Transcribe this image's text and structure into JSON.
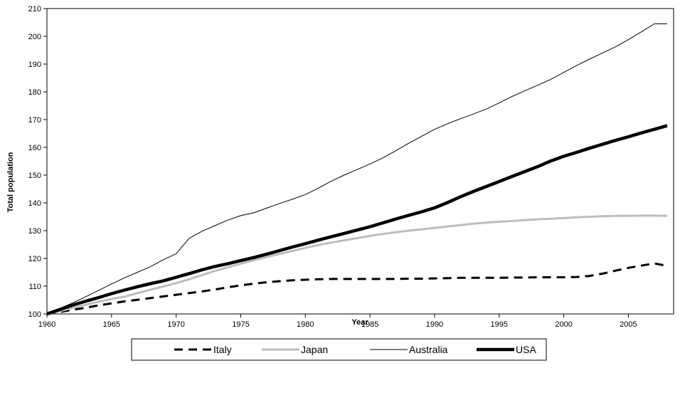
{
  "chart_data": {
    "type": "line",
    "title": "",
    "xlabel": "Year",
    "ylabel": "Total population",
    "xlim": [
      1960,
      2008.5
    ],
    "ylim": [
      100,
      210
    ],
    "x_ticks": [
      1960,
      1965,
      1970,
      1975,
      1980,
      1985,
      1990,
      1995,
      2000,
      2005
    ],
    "y_ticks": [
      100,
      110,
      120,
      130,
      140,
      150,
      160,
      170,
      180,
      190,
      200,
      210
    ],
    "grid": false,
    "legend_position": "bottom",
    "x": [
      1960,
      1961,
      1962,
      1963,
      1964,
      1965,
      1966,
      1967,
      1968,
      1969,
      1970,
      1971,
      1972,
      1973,
      1974,
      1975,
      1976,
      1977,
      1978,
      1979,
      1980,
      1981,
      1982,
      1983,
      1984,
      1985,
      1986,
      1987,
      1988,
      1989,
      1990,
      1991,
      1992,
      1993,
      1994,
      1995,
      1996,
      1997,
      1998,
      1999,
      2000,
      2001,
      2002,
      2003,
      2004,
      2005,
      2006,
      2007,
      2008
    ],
    "series": [
      {
        "name": "Italy",
        "color": "#000000",
        "style": "dashed-thick",
        "values": [
          100,
          100.7,
          101.5,
          102.2,
          103.1,
          103.8,
          104.5,
          105.1,
          105.7,
          106.3,
          106.9,
          107.5,
          108.1,
          108.8,
          109.6,
          110.3,
          110.9,
          111.4,
          111.8,
          112.1,
          112.3,
          112.5,
          112.6,
          112.6,
          112.6,
          112.6,
          112.6,
          112.6,
          112.7,
          112.7,
          112.8,
          112.9,
          113.0,
          113.0,
          113.0,
          113.0,
          113.1,
          113.1,
          113.2,
          113.2,
          113.2,
          113.3,
          113.7,
          114.5,
          115.6,
          116.6,
          117.4,
          118.2,
          117.3
        ]
      },
      {
        "name": "Japan",
        "color": "#bdbdbd",
        "style": "solid-thick",
        "values": [
          100,
          101.0,
          102.2,
          103.3,
          104.4,
          105.4,
          106.2,
          107.5,
          108.7,
          109.9,
          111.1,
          112.5,
          114.0,
          115.5,
          116.8,
          118.1,
          119.3,
          120.5,
          121.6,
          122.7,
          123.8,
          124.8,
          125.7,
          126.5,
          127.3,
          128.1,
          128.8,
          129.4,
          130.0,
          130.5,
          131.0,
          131.5,
          132.0,
          132.5,
          132.9,
          133.2,
          133.5,
          133.8,
          134.1,
          134.3,
          134.5,
          134.8,
          135.0,
          135.2,
          135.3,
          135.3,
          135.4,
          135.4,
          135.3
        ]
      },
      {
        "name": "Australia",
        "color": "#000000",
        "style": "solid-thin",
        "values": [
          100,
          102.0,
          104.0,
          106.2,
          108.5,
          110.8,
          113.0,
          115.0,
          117.0,
          119.5,
          121.7,
          127.2,
          129.8,
          131.8,
          133.8,
          135.4,
          136.4,
          138.1,
          139.8,
          141.3,
          143.0,
          145.3,
          147.8,
          150.0,
          152.0,
          154.0,
          156.2,
          158.8,
          161.5,
          164.0,
          166.5,
          168.5,
          170.3,
          172.0,
          173.8,
          176.0,
          178.3,
          180.4,
          182.4,
          184.5,
          187.0,
          189.5,
          191.8,
          194.0,
          196.2,
          198.8,
          201.6,
          204.5,
          204.5
        ]
      },
      {
        "name": "USA",
        "color": "#000000",
        "style": "solid-extra-thick",
        "values": [
          100,
          101.6,
          103.2,
          104.6,
          105.9,
          107.3,
          108.6,
          109.8,
          110.9,
          111.9,
          113.2,
          114.5,
          115.9,
          117.1,
          118.1,
          119.2,
          120.3,
          121.5,
          122.8,
          124.1,
          125.3,
          126.6,
          127.8,
          129.0,
          130.2,
          131.4,
          132.8,
          134.2,
          135.5,
          136.8,
          138.2,
          140.1,
          142.2,
          144.1,
          145.9,
          147.7,
          149.5,
          151.3,
          153.1,
          155.1,
          156.8,
          158.2,
          159.7,
          161.1,
          162.5,
          163.8,
          165.2,
          166.5,
          167.8
        ]
      }
    ]
  }
}
